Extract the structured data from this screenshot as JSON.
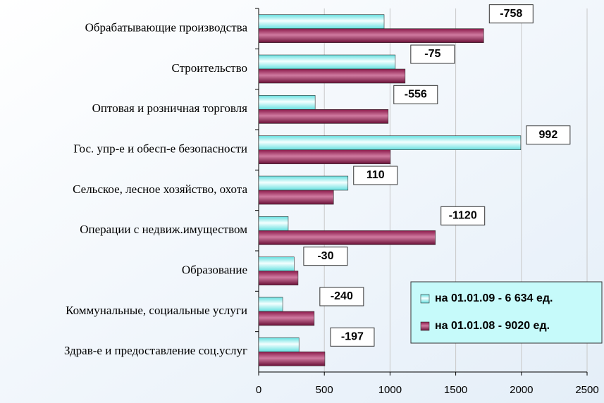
{
  "chart_data": {
    "type": "hbar",
    "categories": [
      "Обрабатывающие производства",
      "Строительство",
      "Оптовая и розничная торговля",
      "Гос. упр-е и обесп-е безопасности",
      "Сельское, лесное хозяйство, охота ",
      "Операции с недвиж.имуществом",
      "Образование",
      "Коммунальные, социальные услуги",
      "Здрав-е и предоставление соц.услуг"
    ],
    "series": [
      {
        "name": "на 01.01.09 - 6 634 ед.",
        "color": "#66e0e0",
        "values": [
          955,
          1040,
          430,
          1995,
          680,
          225,
          270,
          183,
          307
        ]
      },
      {
        "name": "на 01.01.08 - 9020 ед.",
        "color": "#8b1a4a",
        "values": [
          1713,
          1115,
          986,
          1003,
          570,
          1345,
          300,
          423,
          504
        ]
      }
    ],
    "annotations": [
      -758,
      -75,
      -556,
      992,
      110,
      -1120,
      -30,
      -240,
      -197
    ],
    "xlim": [
      0,
      2500
    ],
    "xticks": [
      0,
      500,
      1000,
      1500,
      2000,
      2500
    ],
    "grid": true,
    "legend": "lower right"
  }
}
